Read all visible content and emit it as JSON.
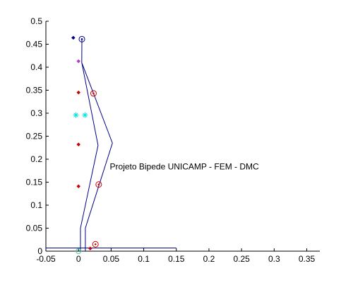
{
  "chart_data": {
    "type": "line",
    "title": "",
    "xlabel": "",
    "ylabel": "",
    "xlim": [
      -0.05,
      0.37
    ],
    "ylim": [
      0,
      0.5
    ],
    "x_ticks": [
      -0.05,
      0,
      0.05,
      0.1,
      0.15,
      0.2,
      0.25,
      0.3,
      0.35
    ],
    "y_ticks": [
      0,
      0.05,
      0.1,
      0.15,
      0.2,
      0.25,
      0.3,
      0.35,
      0.4,
      0.45,
      0.5
    ],
    "x_tick_labels": [
      "-0.05",
      "0",
      "0.05",
      "0.1",
      "0.15",
      "0.2",
      "0.25",
      "0.3",
      "0.35"
    ],
    "y_tick_labels": [
      "0",
      "0.05",
      "0.1",
      "0.15",
      "0.2",
      "0.25",
      "0.3",
      "0.35",
      "0.4",
      "0.45",
      "0.5"
    ],
    "grid": false,
    "annotation": {
      "text": "Projeto Bipede UNICAMP - FEM - DMC",
      "x": 0.048,
      "y": 0.178
    },
    "series": [
      {
        "kind": "line",
        "color": "#00008b",
        "points": [
          [
            -0.05,
            0.007
          ],
          [
            0.15,
            0.007
          ]
        ]
      },
      {
        "kind": "line",
        "color": "#00008b",
        "points": [
          [
            0.003,
            0.0
          ],
          [
            0.003,
            0.05
          ],
          [
            0.03,
            0.23
          ],
          [
            0.005,
            0.41
          ],
          [
            0.0052,
            0.46
          ],
          [
            0.005,
            0.41
          ],
          [
            0.052,
            0.235
          ],
          [
            0.0105,
            0.05
          ],
          [
            0.0105,
            0.0
          ]
        ]
      },
      {
        "kind": "points",
        "marker": "diamond",
        "color": "#00008b",
        "points": [
          [
            -0.008,
            0.464
          ]
        ]
      },
      {
        "kind": "points",
        "marker": "diamond",
        "color": "#b03ac8",
        "points": [
          [
            0.0,
            0.413
          ]
        ]
      },
      {
        "kind": "points",
        "marker": "diamond",
        "color": "#cc0000",
        "points": [
          [
            0.0,
            0.345
          ],
          [
            0.0,
            0.232
          ],
          [
            0.0,
            0.141
          ],
          [
            0.018,
            0.006
          ]
        ]
      },
      {
        "kind": "points",
        "marker": "star",
        "color": "#00e5e5",
        "points": [
          [
            -0.004,
            0.296
          ],
          [
            0.01,
            0.296
          ]
        ]
      },
      {
        "kind": "points",
        "marker": "circled",
        "color": "#00008b",
        "points": [
          [
            0.0052,
            0.461
          ]
        ]
      },
      {
        "kind": "points",
        "marker": "circled",
        "color": "#cc0000",
        "points": [
          [
            0.023,
            0.343
          ],
          [
            0.031,
            0.145
          ],
          [
            0.026,
            0.015
          ]
        ]
      },
      {
        "kind": "points",
        "marker": "circle-open",
        "color": "#40d0a0",
        "points": [
          [
            0.0,
            0.0
          ]
        ]
      }
    ]
  }
}
